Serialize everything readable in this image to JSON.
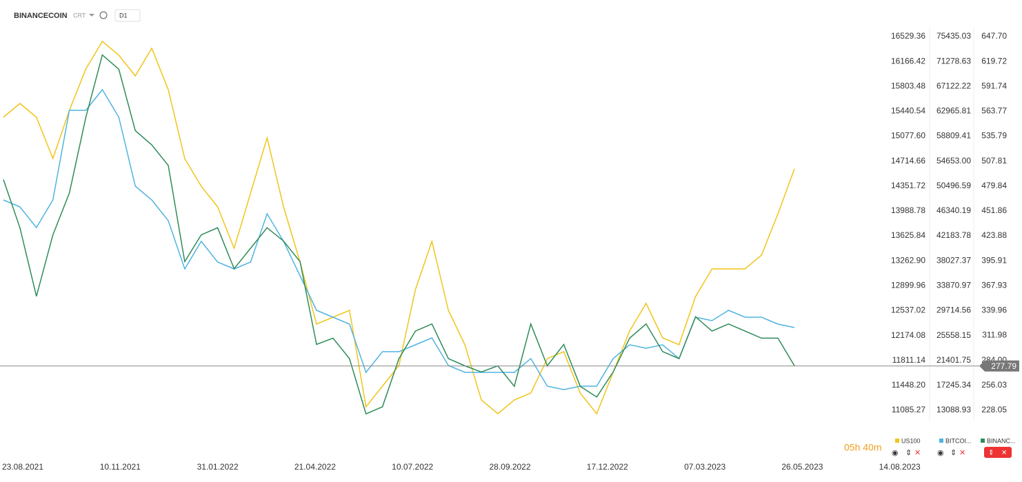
{
  "header": {
    "symbol": "BINANCECOIN",
    "mode": "CRT",
    "timeframe": "D1"
  },
  "countdown": "05h 40m",
  "chart_data": {
    "type": "line",
    "xticks": [
      "23.08.2021",
      "10.11.2021",
      "31.01.2022",
      "21.04.2022",
      "10.07.2022",
      "28.09.2022",
      "17.12.2022",
      "07.03.2023",
      "26.05.2023",
      "14.08.2023"
    ],
    "last_price": 277.79,
    "series": [
      {
        "name": "US100",
        "color": "#f0c419",
        "ylim": [
          10432.3,
          16760.4
        ],
        "yticks": [
          11085.27,
          {
            "value": 11448.2,
            "label": "11448.20"
          },
          11811.14,
          12174.08,
          12537.02,
          12899.96,
          {
            "value": 13262.9,
            "label": "13262.90"
          },
          13625.84,
          13988.78,
          14351.72,
          14714.66,
          {
            "value": 15077.6,
            "label": "15077.60"
          },
          15440.54,
          15803.48,
          16166.42,
          16529.36
        ],
        "values": [
          15354,
          15555,
          15354,
          14751,
          15455,
          16057,
          16459,
          16258,
          15957,
          16359,
          15756,
          14751,
          14350,
          14048,
          13446,
          14249,
          15053,
          14048,
          13245,
          12341,
          12441,
          12542,
          11135,
          11437,
          11738,
          12843,
          13546,
          12542,
          12040,
          11236,
          11035,
          11236,
          11336,
          11838,
          11939,
          11336,
          11035,
          11638,
          12240,
          12642,
          12140,
          12040,
          12742,
          13144,
          13144,
          13144,
          13345,
          13948,
          14601
        ]
      },
      {
        "name": "BITCOI...",
        "color": "#4fb3e0",
        "ylim": [
          5611,
          78081
        ],
        "yticks": [
          13088.93,
          17245.34,
          21401.75,
          25558.15,
          29714.56,
          33870.97,
          38027.37,
          42183.78,
          46340.19,
          50496.59,
          {
            "value": 54653,
            "label": "54653.00"
          },
          58809.41,
          62965.81,
          67122.22,
          71278.63,
          75435.03
        ],
        "values": [
          48170,
          47020,
          43569,
          48170,
          63126,
          63126,
          66577,
          61976,
          50471,
          48170,
          44719,
          36666,
          41268,
          37817,
          36666,
          37817,
          45870,
          41268,
          35516,
          29764,
          28613,
          27463,
          19410,
          22862,
          22862,
          24012,
          25162,
          20561,
          19410,
          19410,
          19410,
          19410,
          21711,
          17109,
          16534,
          17109,
          17109,
          21711,
          24012,
          23437,
          24012,
          21711,
          28613,
          28038,
          29764,
          28613,
          28613,
          27463,
          26888
        ]
      },
      {
        "name": "BINANC...",
        "color": "#2e8b57",
        "ylim": [
          177.7,
          665.5
        ],
        "yticks": [
          228.05,
          256.03,
          {
            "value": 284,
            "label": "284.00"
          },
          311.98,
          339.96,
          367.93,
          395.91,
          423.88,
          451.86,
          479.84,
          507.81,
          535.79,
          563.77,
          591.74,
          619.72,
          {
            "value": 647.7,
            "label": "647.70"
          }
        ],
        "values": [
          487,
          433,
          356,
          425,
          472,
          557,
          627,
          611,
          542,
          526,
          503,
          395,
          425,
          433,
          387,
          410,
          433,
          418,
          395,
          302,
          309,
          286,
          224,
          232,
          286,
          317,
          325,
          286,
          278,
          271,
          278,
          255,
          325,
          278,
          302,
          255,
          243,
          271,
          309,
          325,
          294,
          286,
          333,
          317,
          325,
          317,
          309,
          309,
          278
        ]
      }
    ]
  }
}
